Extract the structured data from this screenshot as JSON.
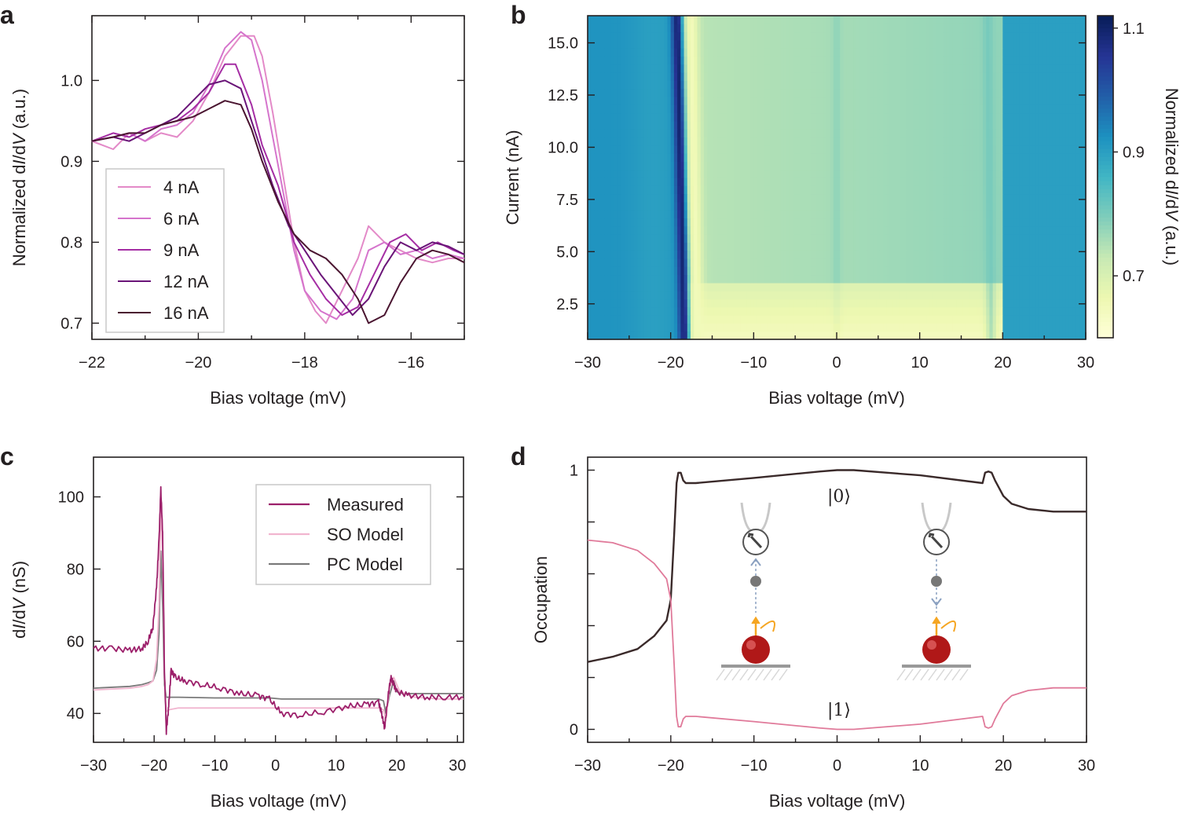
{
  "chart_data": [
    {
      "panel": "a",
      "type": "line",
      "xlabel": "Bias voltage (mV)",
      "ylabel_parts": [
        "Normalized d",
        "I",
        "/d",
        "V",
        " (a.u.)"
      ],
      "xlim": [
        -22,
        -15
      ],
      "ylim": [
        0.68,
        1.08
      ],
      "xticks": [
        -22,
        -20,
        -18,
        -16
      ],
      "xtick_labels": [
        "−22",
        "−20",
        "−18",
        "−16"
      ],
      "yticks": [
        0.7,
        0.8,
        0.9,
        1.0
      ],
      "ytick_labels": [
        "0.7",
        "0.8",
        "0.9",
        "1.0"
      ],
      "legend": "left-middle",
      "series": [
        {
          "name": "4 nA",
          "color": "#e38ac8",
          "x": [
            -22,
            -21.6,
            -21.3,
            -21,
            -20.7,
            -20.4,
            -20.1,
            -19.8,
            -19.5,
            -19.2,
            -18.95,
            -18.8,
            -18.6,
            -18.4,
            -18.2,
            -18.0,
            -17.8,
            -17.6,
            -17.3,
            -17.0,
            -16.8,
            -16.5,
            -16.2,
            -15.9,
            -15.6,
            -15.3,
            -15.0
          ],
          "y": [
            0.925,
            0.915,
            0.935,
            0.925,
            0.935,
            0.93,
            0.95,
            0.985,
            1.03,
            1.055,
            1.055,
            1.03,
            0.96,
            0.88,
            0.8,
            0.74,
            0.715,
            0.7,
            0.74,
            0.78,
            0.82,
            0.8,
            0.79,
            0.78,
            0.775,
            0.78,
            0.78
          ]
        },
        {
          "name": "6 nA",
          "color": "#d574cc",
          "x": [
            -22,
            -21.6,
            -21.3,
            -21,
            -20.7,
            -20.4,
            -20.1,
            -19.8,
            -19.5,
            -19.2,
            -19.0,
            -18.8,
            -18.6,
            -18.4,
            -18.2,
            -18.0,
            -17.7,
            -17.4,
            -17.1,
            -16.8,
            -16.5,
            -16.2,
            -15.9,
            -15.6,
            -15.3,
            -15.0
          ],
          "y": [
            0.925,
            0.93,
            0.935,
            0.925,
            0.94,
            0.945,
            0.96,
            0.995,
            1.04,
            1.06,
            1.05,
            1.0,
            0.93,
            0.86,
            0.79,
            0.74,
            0.715,
            0.705,
            0.73,
            0.79,
            0.8,
            0.785,
            0.79,
            0.78,
            0.785,
            0.78
          ]
        },
        {
          "name": "9 nA",
          "color": "#a52ea4",
          "x": [
            -22,
            -21.6,
            -21.3,
            -21,
            -20.7,
            -20.4,
            -20.1,
            -19.8,
            -19.5,
            -19.3,
            -19.0,
            -18.8,
            -18.5,
            -18.2,
            -17.9,
            -17.6,
            -17.3,
            -17.0,
            -16.7,
            -16.4,
            -16.1,
            -15.8,
            -15.5,
            -15.2,
            -15.0
          ],
          "y": [
            0.925,
            0.935,
            0.93,
            0.94,
            0.945,
            0.95,
            0.965,
            0.985,
            1.02,
            1.02,
            0.97,
            0.92,
            0.87,
            0.8,
            0.76,
            0.73,
            0.71,
            0.72,
            0.76,
            0.8,
            0.81,
            0.79,
            0.8,
            0.79,
            0.785
          ]
        },
        {
          "name": "12 nA",
          "color": "#6a1578",
          "x": [
            -22,
            -21.6,
            -21.3,
            -21,
            -20.7,
            -20.4,
            -20.1,
            -19.8,
            -19.5,
            -19.2,
            -18.9,
            -18.6,
            -18.3,
            -18.0,
            -17.7,
            -17.4,
            -17.1,
            -16.8,
            -16.5,
            -16.2,
            -15.9,
            -15.6,
            -15.3,
            -15.0
          ],
          "y": [
            0.925,
            0.93,
            0.925,
            0.935,
            0.945,
            0.955,
            0.975,
            0.995,
            1.0,
            0.99,
            0.93,
            0.87,
            0.82,
            0.79,
            0.76,
            0.735,
            0.71,
            0.73,
            0.77,
            0.8,
            0.79,
            0.8,
            0.795,
            0.785
          ]
        },
        {
          "name": "16 nA",
          "color": "#4a1530",
          "x": [
            -22,
            -21.6,
            -21.3,
            -21,
            -20.7,
            -20.4,
            -20.1,
            -19.8,
            -19.5,
            -19.2,
            -19.0,
            -18.8,
            -18.5,
            -18.2,
            -17.9,
            -17.6,
            -17.3,
            -17.0,
            -16.8,
            -16.5,
            -16.2,
            -15.9,
            -15.6,
            -15.3,
            -15.0
          ],
          "y": [
            0.925,
            0.93,
            0.935,
            0.935,
            0.945,
            0.95,
            0.955,
            0.965,
            0.975,
            0.97,
            0.94,
            0.9,
            0.85,
            0.81,
            0.79,
            0.78,
            0.76,
            0.73,
            0.7,
            0.71,
            0.75,
            0.78,
            0.79,
            0.785,
            0.775
          ]
        }
      ]
    },
    {
      "panel": "b",
      "type": "heatmap",
      "xlabel": "Bias voltage (mV)",
      "ylabel": "Current (nA)",
      "xlim": [
        -30,
        30
      ],
      "ylim": [
        0.8,
        16.3
      ],
      "xticks": [
        -30,
        -20,
        -10,
        0,
        10,
        20,
        30
      ],
      "xtick_labels": [
        "−30",
        "−20",
        "−10",
        "0",
        "10",
        "20",
        "30"
      ],
      "yticks": [
        2.5,
        5.0,
        7.5,
        10.0,
        12.5,
        15.0
      ],
      "ytick_labels": [
        "2.5",
        "5.0",
        "7.5",
        "10.0",
        "12.5",
        "15.0"
      ],
      "colorbar_label_parts": [
        "Normalized d",
        "I",
        "/d",
        "V",
        " (a.u.)"
      ],
      "colorbar_range": [
        0.6,
        1.12
      ],
      "colorbar_ticks": [
        0.7,
        0.9,
        1.1
      ],
      "colorbar_tick_labels": [
        "0.7",
        "0.9",
        "1.1"
      ],
      "colormap": [
        "#ffffd9",
        "#edf8b1",
        "#c7e9b4",
        "#7fcdbb",
        "#41b6c4",
        "#1d91c0",
        "#225ea8",
        "#253494",
        "#081d58"
      ],
      "features": [
        {
          "name": "dip",
          "bias_at_16nA": -19.2,
          "bias_at_1nA": -18.3,
          "value": 1.1
        },
        {
          "name": "peak",
          "bias_at_16nA": -17.5,
          "bias_at_1nA": -16.8,
          "value": 0.65
        },
        {
          "name": "line",
          "bias_at_16nA": 18.2,
          "bias_at_1nA": 18.6,
          "value": 0.82
        }
      ],
      "background_value_outer": 0.92,
      "background_value_inner": 0.76,
      "low_current_inner_value": 0.64
    },
    {
      "panel": "c",
      "type": "line",
      "xlabel": "Bias voltage (mV)",
      "ylabel_parts": [
        "d",
        "I",
        "/d",
        "V",
        "  (nS)"
      ],
      "xlim": [
        -30,
        31
      ],
      "ylim": [
        32,
        111
      ],
      "xticks": [
        -30,
        -20,
        -10,
        0,
        10,
        20,
        30
      ],
      "xtick_labels": [
        "−30",
        "−20",
        "−10",
        "0",
        "10",
        "20",
        "30"
      ],
      "yticks": [
        40,
        60,
        80,
        100
      ],
      "ytick_labels": [
        "40",
        "60",
        "80",
        "100"
      ],
      "legend": "top-right",
      "series": [
        {
          "name": "Measured",
          "color": "#9c1f6a",
          "x": [
            -30,
            -27,
            -24,
            -22,
            -21,
            -20.2,
            -19.6,
            -19.2,
            -18.9,
            -18.6,
            -18.3,
            -18.0,
            -17.6,
            -17.2,
            -16.5,
            -15,
            -12,
            -9,
            -6,
            -3,
            -1,
            1,
            4,
            8,
            12,
            15,
            17,
            17.5,
            18.0,
            18.5,
            19.0,
            19.5,
            20,
            22,
            25,
            28,
            31
          ],
          "y": [
            58,
            58,
            57.5,
            58,
            60,
            64,
            75,
            88,
            102,
            90,
            52,
            35,
            42,
            52,
            50,
            49,
            48,
            47,
            45.5,
            45,
            44,
            40,
            39.5,
            40.5,
            42,
            42.5,
            43,
            40,
            36,
            44,
            50,
            48,
            46,
            45,
            44.5,
            44.5,
            44.5
          ]
        },
        {
          "name": "SO Model",
          "color": "#f1b5cf",
          "x": [
            -30,
            -24,
            -22,
            -21,
            -20.2,
            -19.6,
            -19.2,
            -18.9,
            -18.6,
            -18.3,
            -18.0,
            -17.6,
            -16,
            -10,
            0,
            10,
            17,
            17.8,
            18.2,
            18.8,
            19.5,
            20.5,
            23,
            27,
            31
          ],
          "y": [
            46.5,
            47,
            47.5,
            48,
            49,
            55,
            70,
            98,
            85,
            50,
            40.5,
            41,
            41.5,
            41.5,
            41.5,
            41.5,
            41.5,
            41,
            38,
            47,
            50,
            46,
            44.5,
            44,
            44
          ]
        },
        {
          "name": "PC Model",
          "color": "#7a7a7a",
          "x": [
            -30,
            -24,
            -22,
            -21,
            -20.2,
            -19.6,
            -19.2,
            -18.9,
            -18.6,
            -18.3,
            -18.0,
            -17.6,
            -16,
            -10,
            -1,
            1,
            10,
            17,
            17.8,
            18.2,
            18.8,
            19.5,
            20,
            21,
            31
          ],
          "y": [
            47,
            47.5,
            48,
            48.5,
            49,
            52,
            62,
            85,
            70,
            48,
            44.5,
            44.5,
            44.5,
            44.3,
            44.3,
            44,
            44,
            44,
            43.5,
            40,
            45,
            49,
            46,
            45.5,
            45.5
          ]
        }
      ]
    },
    {
      "panel": "d",
      "type": "line",
      "xlabel": "Bias voltage (mV)",
      "ylabel": "Occupation",
      "xlim": [
        -30,
        30
      ],
      "ylim": [
        -0.05,
        1.05
      ],
      "xticks": [
        -30,
        -20,
        -10,
        0,
        10,
        20,
        30
      ],
      "xtick_labels": [
        "−30",
        "−20",
        "−10",
        "0",
        "10",
        "20",
        "30"
      ],
      "yticks": [
        0,
        0.2,
        0.4,
        0.6,
        0.8,
        1
      ],
      "ytick_labels": [
        "0",
        "",
        "",
        "",
        "",
        "1"
      ],
      "series": [
        {
          "name": "|0⟩",
          "color": "#3a2a2a",
          "x": [
            -30,
            -27,
            -24,
            -22,
            -20.5,
            -20,
            -19.6,
            -19.3,
            -19.1,
            -18.8,
            -18.5,
            -18.2,
            -17,
            -10,
            -2,
            0,
            2,
            10,
            17.5,
            17.8,
            18.2,
            18.6,
            19,
            19.5,
            20,
            21,
            23,
            26,
            30
          ],
          "y": [
            0.26,
            0.28,
            0.31,
            0.36,
            0.42,
            0.5,
            0.75,
            0.95,
            0.99,
            0.99,
            0.96,
            0.95,
            0.95,
            0.97,
            0.995,
            1.0,
            1.0,
            0.98,
            0.95,
            0.99,
            0.995,
            0.99,
            0.96,
            0.93,
            0.9,
            0.87,
            0.85,
            0.84,
            0.84
          ]
        },
        {
          "name": "|1⟩",
          "color": "#e07a9a",
          "x": [
            -30,
            -27,
            -24,
            -22,
            -20.5,
            -20,
            -19.6,
            -19.3,
            -19.1,
            -18.8,
            -18.5,
            -18.2,
            -17,
            -10,
            -2,
            0,
            2,
            10,
            17.5,
            17.8,
            18.2,
            18.6,
            19,
            19.5,
            20,
            21,
            23,
            26,
            30
          ],
          "y": [
            0.73,
            0.72,
            0.69,
            0.64,
            0.58,
            0.5,
            0.25,
            0.05,
            0.01,
            0.01,
            0.04,
            0.05,
            0.05,
            0.03,
            0.005,
            0.0,
            0.0,
            0.02,
            0.05,
            0.01,
            0.005,
            0.01,
            0.04,
            0.07,
            0.1,
            0.13,
            0.15,
            0.16,
            0.16
          ]
        }
      ],
      "annotations": [
        "|0⟩",
        "|1⟩"
      ]
    }
  ]
}
